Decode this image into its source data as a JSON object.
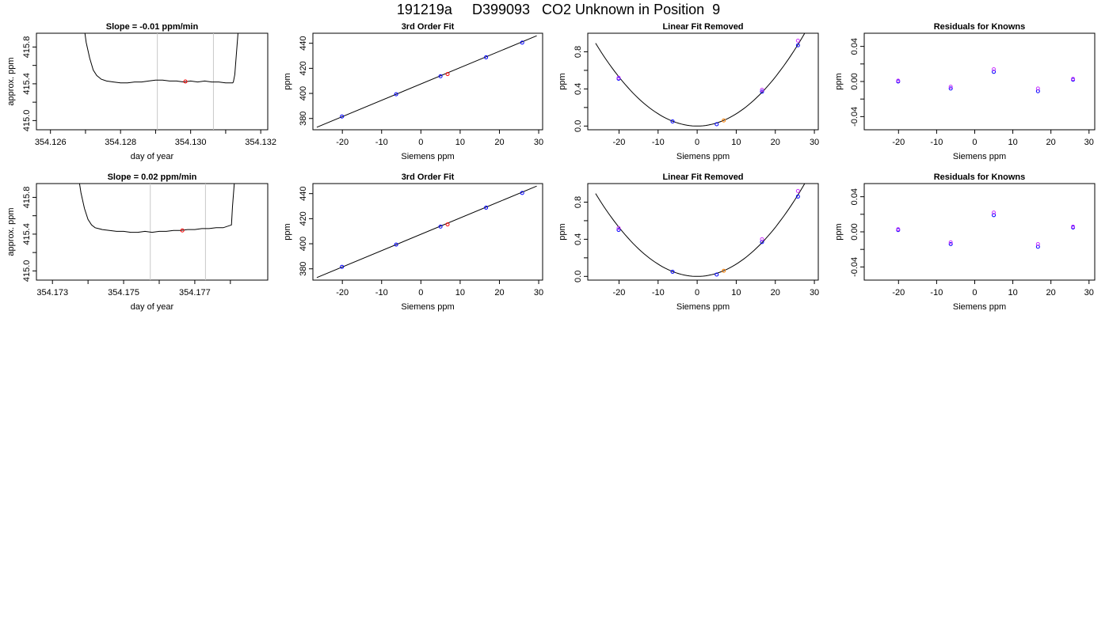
{
  "page": {
    "title": "191219a     D399093   CO2 Unknown in Position  9"
  },
  "colors": {
    "line": "#000000",
    "frame": "#000000",
    "vline": "#c8c8c8",
    "unknown_red": "#ff0000",
    "unknown_orange": "#ff8000",
    "known_blue": "#0000ff",
    "known_magenta": "#cc33ff",
    "background": "#ffffff"
  },
  "chart_data": [
    {
      "id": "r1-timeseries",
      "type": "line",
      "title": "Slope =  -0.01  ppm/min",
      "xlabel": "day of year",
      "ylabel": "approx. ppm",
      "xlim": [
        354.1256,
        354.1322
      ],
      "ylim": [
        414.9,
        415.95
      ],
      "xticks": [
        354.126,
        354.127,
        354.128,
        354.129,
        354.13,
        354.131,
        354.132
      ],
      "xtick_labels": [
        "354.126",
        "",
        "354.128",
        "",
        "354.130",
        "",
        "354.132"
      ],
      "yticks": [
        415.0,
        415.2,
        415.4,
        415.6,
        415.8
      ],
      "ytick_labels": [
        "415.0",
        "",
        "415.4",
        "",
        "415.8"
      ],
      "vlines": [
        354.12905,
        354.13065
      ],
      "series": [
        {
          "x": [
            354.12693,
            354.12702,
            354.12712,
            354.12722,
            354.12732,
            354.12745,
            354.1276,
            354.1278,
            354.128,
            354.1282,
            354.1284,
            354.1286,
            354.1288,
            354.129,
            354.1292,
            354.1294,
            354.1296,
            354.1298,
            354.13,
            354.1302,
            354.1304,
            354.1306,
            354.1308,
            354.131,
            354.1312,
            354.13122,
            354.13126,
            354.1313,
            354.13134,
            354.13138
          ],
          "y": [
            416.1,
            415.85,
            415.68,
            415.55,
            415.49,
            415.45,
            415.43,
            415.42,
            415.41,
            415.41,
            415.42,
            415.42,
            415.43,
            415.44,
            415.44,
            415.43,
            415.43,
            415.42,
            415.43,
            415.42,
            415.43,
            415.42,
            415.42,
            415.41,
            415.41,
            415.42,
            415.5,
            415.7,
            415.9,
            416.1
          ]
        }
      ],
      "markers": [
        {
          "x": 354.12985,
          "y": 415.425,
          "color": "#ff0000"
        }
      ]
    },
    {
      "id": "r1-fit",
      "type": "scatter",
      "title": "3rd Order Fit",
      "xlabel": "Siemens ppm",
      "ylabel": "ppm",
      "xlim": [
        -27.5,
        31
      ],
      "ylim": [
        371,
        448
      ],
      "xticks": [
        -20,
        -10,
        0,
        10,
        20,
        30
      ],
      "xtick_labels": [
        "-20",
        "-10",
        "0",
        "10",
        "20",
        "30"
      ],
      "yticks": [
        380,
        400,
        420,
        440
      ],
      "ytick_labels": [
        "380",
        "400",
        "420",
        "440"
      ],
      "line": {
        "x": [
          -26.5,
          29.5
        ],
        "y": [
          373,
          446
        ]
      },
      "points": [
        {
          "x": -20.1,
          "y": 381.6,
          "color": "#0000ff"
        },
        {
          "x": -6.3,
          "y": 399.3,
          "color": "#0000ff"
        },
        {
          "x": 5.0,
          "y": 413.7,
          "color": "#0000ff"
        },
        {
          "x": 6.8,
          "y": 415.4,
          "color": "#ff0000"
        },
        {
          "x": 16.6,
          "y": 428.8,
          "color": "#0000ff"
        },
        {
          "x": 25.8,
          "y": 440.5,
          "color": "#0000ff"
        }
      ]
    },
    {
      "id": "r1-linear-removed",
      "type": "scatter",
      "title": "Linear Fit Removed",
      "xlabel": "Siemens ppm",
      "ylabel": "ppm",
      "xlim": [
        -28,
        31
      ],
      "ylim": [
        -0.04,
        1.0
      ],
      "xticks": [
        -20,
        -10,
        0,
        10,
        20,
        30
      ],
      "xtick_labels": [
        "-20",
        "-10",
        "0",
        "10",
        "20",
        "30"
      ],
      "yticks": [
        0.0,
        0.2,
        0.4,
        0.6,
        0.8
      ],
      "ytick_labels": [
        "0.0",
        "",
        "0.4",
        "",
        "0.8"
      ],
      "curve": {
        "a": 0.00132,
        "x0": 0,
        "c": 0.0,
        "xmin": -26,
        "xmax": 29
      },
      "points": [
        {
          "x": -20.1,
          "y": 0.51,
          "color": "#0000ff"
        },
        {
          "x": -20.1,
          "y": 0.52,
          "color": "#cc33ff"
        },
        {
          "x": -6.3,
          "y": 0.05,
          "color": "#0000ff"
        },
        {
          "x": 5.0,
          "y": 0.02,
          "color": "#0000ff"
        },
        {
          "x": 6.8,
          "y": 0.06,
          "color": "#ff8000"
        },
        {
          "x": 16.6,
          "y": 0.37,
          "color": "#0000ff"
        },
        {
          "x": 16.6,
          "y": 0.39,
          "color": "#cc33ff"
        },
        {
          "x": 25.8,
          "y": 0.87,
          "color": "#0000ff"
        },
        {
          "x": 25.8,
          "y": 0.92,
          "color": "#cc33ff"
        }
      ]
    },
    {
      "id": "r1-residuals",
      "type": "scatter",
      "title": "Residuals for Knowns",
      "xlabel": "Siemens ppm",
      "ylabel": "ppm",
      "xlim": [
        -29,
        31.5
      ],
      "ylim": [
        -0.055,
        0.055
      ],
      "xticks": [
        -20,
        -10,
        0,
        10,
        20,
        30
      ],
      "xtick_labels": [
        "-20",
        "-10",
        "0",
        "10",
        "20",
        "30"
      ],
      "yticks": [
        -0.04,
        -0.02,
        0.0,
        0.02,
        0.04
      ],
      "ytick_labels": [
        "-0.04",
        "",
        "0.00",
        "",
        "0.04"
      ],
      "points": [
        {
          "x": -20.1,
          "y": 0.0,
          "color": "#0000ff"
        },
        {
          "x": -20.1,
          "y": 0.001,
          "color": "#cc33ff"
        },
        {
          "x": -6.3,
          "y": -0.008,
          "color": "#0000ff"
        },
        {
          "x": -6.3,
          "y": -0.006,
          "color": "#cc33ff"
        },
        {
          "x": 5.0,
          "y": 0.011,
          "color": "#0000ff"
        },
        {
          "x": 5.0,
          "y": 0.014,
          "color": "#cc33ff"
        },
        {
          "x": 16.6,
          "y": -0.011,
          "color": "#0000ff"
        },
        {
          "x": 16.6,
          "y": -0.008,
          "color": "#cc33ff"
        },
        {
          "x": 25.8,
          "y": 0.002,
          "color": "#0000ff"
        },
        {
          "x": 25.8,
          "y": 0.003,
          "color": "#cc33ff"
        }
      ]
    },
    {
      "id": "r2-timeseries",
      "type": "line",
      "title": "Slope =  0.02  ppm/min",
      "xlabel": "day of year",
      "ylabel": "approx. ppm",
      "xlim": [
        354.17255,
        354.17905
      ],
      "ylim": [
        414.9,
        415.95
      ],
      "xticks": [
        354.173,
        354.174,
        354.175,
        354.176,
        354.177,
        354.178
      ],
      "xtick_labels": [
        "354.173",
        "",
        "354.175",
        "",
        "354.177",
        ""
      ],
      "yticks": [
        415.0,
        415.2,
        415.4,
        415.6,
        415.8
      ],
      "ytick_labels": [
        "415.0",
        "",
        "415.4",
        "",
        "415.8"
      ],
      "vlines": [
        354.17575,
        354.1773
      ],
      "series": [
        {
          "x": [
            354.1737,
            354.1738,
            354.1739,
            354.174,
            354.1741,
            354.1742,
            354.1744,
            354.1746,
            354.1748,
            354.175,
            354.1752,
            354.1754,
            354.1756,
            354.1758,
            354.176,
            354.1762,
            354.1764,
            354.1766,
            354.1768,
            354.177,
            354.1772,
            354.1774,
            354.1776,
            354.1778,
            354.17803,
            354.17806,
            354.1781,
            354.17814
          ],
          "y": [
            416.1,
            415.85,
            415.68,
            415.56,
            415.5,
            415.47,
            415.45,
            415.44,
            415.43,
            415.43,
            415.42,
            415.42,
            415.43,
            415.42,
            415.43,
            415.43,
            415.44,
            415.44,
            415.45,
            415.45,
            415.46,
            415.46,
            415.47,
            415.47,
            415.5,
            415.7,
            415.9,
            416.1
          ]
        }
      ],
      "markers": [
        {
          "x": 354.17665,
          "y": 415.44,
          "color": "#ff0000"
        }
      ]
    },
    {
      "id": "r2-fit",
      "type": "scatter",
      "title": "3rd Order Fit",
      "xlabel": "Siemens ppm",
      "ylabel": "ppm",
      "xlim": [
        -27.5,
        31
      ],
      "ylim": [
        371,
        448
      ],
      "xticks": [
        -20,
        -10,
        0,
        10,
        20,
        30
      ],
      "xtick_labels": [
        "-20",
        "-10",
        "0",
        "10",
        "20",
        "30"
      ],
      "yticks": [
        380,
        400,
        420,
        440
      ],
      "ytick_labels": [
        "380",
        "400",
        "420",
        "440"
      ],
      "line": {
        "x": [
          -26.5,
          29.5
        ],
        "y": [
          373,
          446
        ]
      },
      "points": [
        {
          "x": -20.1,
          "y": 381.6,
          "color": "#0000ff"
        },
        {
          "x": -6.3,
          "y": 399.3,
          "color": "#0000ff"
        },
        {
          "x": 5.0,
          "y": 413.7,
          "color": "#0000ff"
        },
        {
          "x": 6.8,
          "y": 415.4,
          "color": "#ff0000"
        },
        {
          "x": 16.6,
          "y": 428.8,
          "color": "#0000ff"
        },
        {
          "x": 25.8,
          "y": 440.5,
          "color": "#0000ff"
        }
      ]
    },
    {
      "id": "r2-linear-removed",
      "type": "scatter",
      "title": "Linear Fit Removed",
      "xlabel": "Siemens ppm",
      "ylabel": "ppm",
      "xlim": [
        -28,
        31
      ],
      "ylim": [
        -0.04,
        1.0
      ],
      "xticks": [
        -20,
        -10,
        0,
        10,
        20,
        30
      ],
      "xtick_labels": [
        "-20",
        "-10",
        "0",
        "10",
        "20",
        "30"
      ],
      "yticks": [
        0.0,
        0.2,
        0.4,
        0.6,
        0.8
      ],
      "ytick_labels": [
        "0.0",
        "",
        "0.4",
        "",
        "0.8"
      ],
      "curve": {
        "a": 0.00132,
        "x0": 0,
        "c": 0.0,
        "xmin": -26,
        "xmax": 29
      },
      "points": [
        {
          "x": -20.1,
          "y": 0.5,
          "color": "#0000ff"
        },
        {
          "x": -20.1,
          "y": 0.52,
          "color": "#cc33ff"
        },
        {
          "x": -6.3,
          "y": 0.05,
          "color": "#0000ff"
        },
        {
          "x": 5.0,
          "y": 0.02,
          "color": "#0000ff"
        },
        {
          "x": 6.8,
          "y": 0.06,
          "color": "#ff8000"
        },
        {
          "x": 16.6,
          "y": 0.37,
          "color": "#0000ff"
        },
        {
          "x": 16.6,
          "y": 0.4,
          "color": "#cc33ff"
        },
        {
          "x": 25.8,
          "y": 0.86,
          "color": "#0000ff"
        },
        {
          "x": 25.8,
          "y": 0.92,
          "color": "#cc33ff"
        }
      ]
    },
    {
      "id": "r2-residuals",
      "type": "scatter",
      "title": "Residuals for Knowns",
      "xlabel": "Siemens ppm",
      "ylabel": "ppm",
      "xlim": [
        -29,
        31.5
      ],
      "ylim": [
        -0.055,
        0.055
      ],
      "xticks": [
        -20,
        -10,
        0,
        10,
        20,
        30
      ],
      "xtick_labels": [
        "-20",
        "-10",
        "0",
        "10",
        "20",
        "30"
      ],
      "yticks": [
        -0.04,
        -0.02,
        0.0,
        0.02,
        0.04
      ],
      "ytick_labels": [
        "-0.04",
        "",
        "0.00",
        "",
        "0.04"
      ],
      "points": [
        {
          "x": -20.1,
          "y": 0.002,
          "color": "#0000ff"
        },
        {
          "x": -20.1,
          "y": 0.003,
          "color": "#cc33ff"
        },
        {
          "x": -6.3,
          "y": -0.014,
          "color": "#0000ff"
        },
        {
          "x": -6.3,
          "y": -0.012,
          "color": "#cc33ff"
        },
        {
          "x": 5.0,
          "y": 0.019,
          "color": "#0000ff"
        },
        {
          "x": 5.0,
          "y": 0.022,
          "color": "#cc33ff"
        },
        {
          "x": 16.6,
          "y": -0.017,
          "color": "#0000ff"
        },
        {
          "x": 16.6,
          "y": -0.014,
          "color": "#cc33ff"
        },
        {
          "x": 25.8,
          "y": 0.005,
          "color": "#0000ff"
        },
        {
          "x": 25.8,
          "y": 0.006,
          "color": "#cc33ff"
        }
      ]
    }
  ]
}
